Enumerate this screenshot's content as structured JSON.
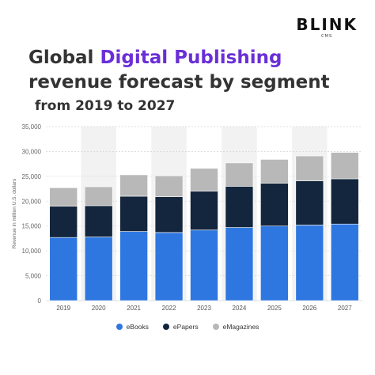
{
  "brand": {
    "logo_text": "BLINK",
    "logo_sub": "CMS"
  },
  "title": {
    "line1_prefix": "Global ",
    "line1_accent": "Digital Publishing",
    "line2": "revenue forecast by segment",
    "subtitle": "from 2019 to 2027"
  },
  "colors": {
    "accent": "#6a2fd6",
    "ebooks": "#2f77e0",
    "epapers": "#13263d",
    "emagazines": "#b8b8b8",
    "band": "#f2f2f2"
  },
  "chart_data": {
    "type": "bar",
    "stacked": true,
    "categories": [
      "2019",
      "2020",
      "2021",
      "2022",
      "2023",
      "2024",
      "2025",
      "2026",
      "2027"
    ],
    "series": [
      {
        "name": "eBooks",
        "values": [
          12700,
          12800,
          13900,
          13700,
          14200,
          14700,
          15000,
          15200,
          15400
        ],
        "color": "#2f77e0"
      },
      {
        "name": "ePapers",
        "values": [
          6300,
          6300,
          7100,
          7200,
          7800,
          8300,
          8600,
          8900,
          9100
        ],
        "color": "#13263d"
      },
      {
        "name": "eMagazines",
        "values": [
          3700,
          3800,
          4300,
          4200,
          4600,
          4700,
          4800,
          5000,
          5300
        ],
        "color": "#b8b8b8"
      }
    ],
    "ylabel": "Revenue in million U.S. dollars",
    "ylim": [
      0,
      35000
    ],
    "yticks": [
      "0",
      "5,000",
      "10,000",
      "15,000",
      "20,000",
      "25,000",
      "30,000",
      "35,000"
    ],
    "grid": true,
    "legend_position": "bottom"
  }
}
